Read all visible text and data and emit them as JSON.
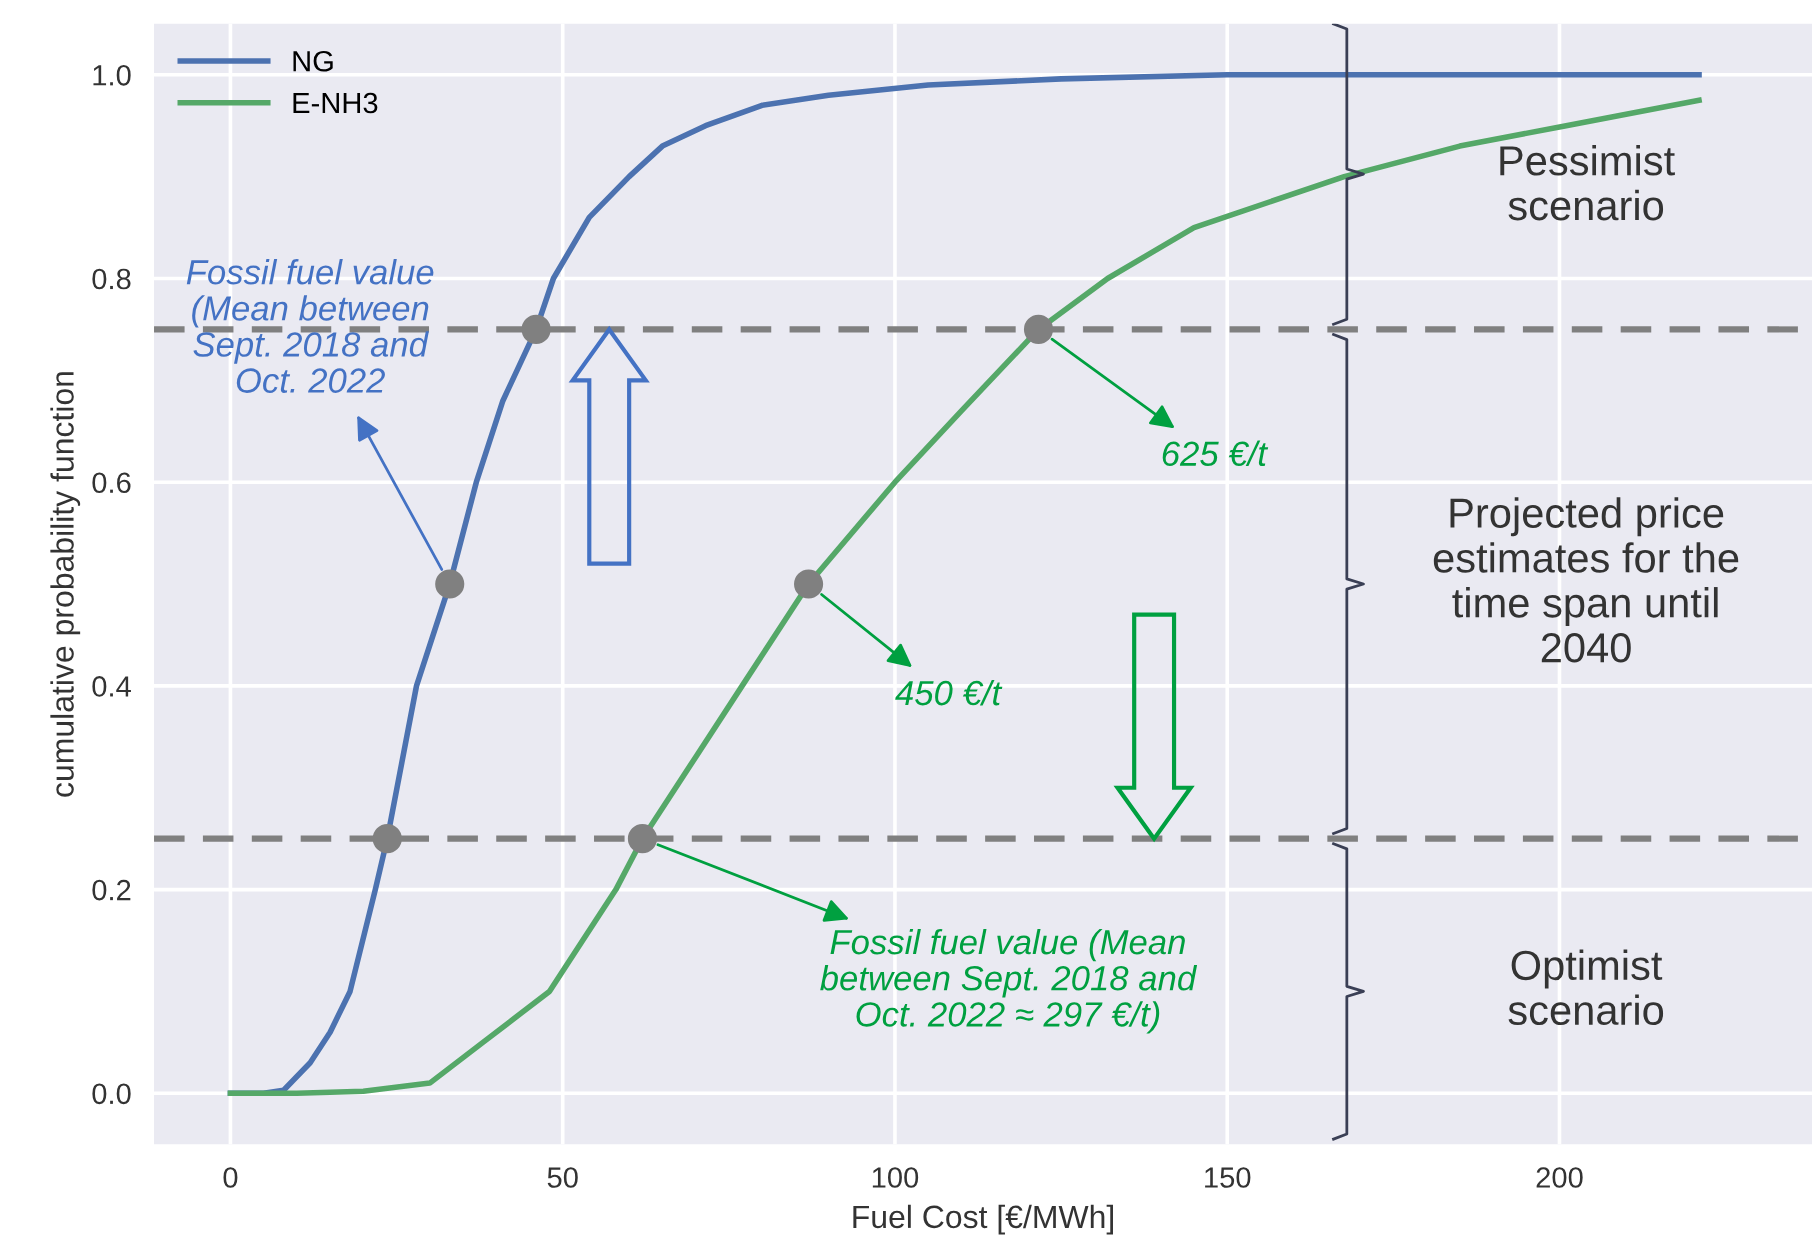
{
  "chart_data": {
    "type": "line",
    "xlabel": "Fuel Cost [€/MWh]",
    "ylabel": "cumulative probability function",
    "xlim": [
      -11.5,
      238
    ],
    "ylim": [
      -0.05,
      1.05
    ],
    "xticks": [
      0,
      50,
      100,
      150,
      200
    ],
    "yticks": [
      {
        "value": 0,
        "label": "0.0"
      },
      0.2,
      0.4,
      0.6,
      0.8,
      {
        "value": 1,
        "label": "1.0"
      }
    ],
    "grid": true,
    "legend": "top left",
    "line_style": "solid",
    "series": [
      {
        "name": "NG",
        "color": "#4c72b0",
        "x": [
          0,
          5,
          8,
          12,
          15,
          18,
          21.8,
          23.6,
          28,
          33,
          37,
          41,
          46,
          48.6,
          54,
          60,
          65,
          71.5,
          80,
          90,
          105,
          125,
          150,
          190,
          221
        ],
        "values": [
          0,
          0,
          0.003,
          0.03,
          0.06,
          0.1,
          0.2,
          0.25,
          0.4,
          0.5,
          0.6,
          0.68,
          0.75,
          0.8,
          0.86,
          0.9,
          0.93,
          0.95,
          0.97,
          0.98,
          0.99,
          0.996,
          1.0,
          1.0,
          1.0
        ]
      },
      {
        "name": "E-NH3",
        "color": "#55a868",
        "x": [
          0,
          10,
          20,
          30,
          38,
          48,
          58,
          62,
          70,
          77,
          87,
          100,
          110,
          121.6,
          132,
          145,
          167.6,
          185,
          201,
          221
        ],
        "values": [
          0,
          0,
          0.002,
          0.01,
          0.05,
          0.1,
          0.2,
          0.25,
          0.33,
          0.4,
          0.5,
          0.6,
          0.67,
          0.75,
          0.8,
          0.85,
          0.9,
          0.93,
          0.95,
          0.975
        ]
      },
      {
        "type": "scatter",
        "color": "#808080",
        "marker": "circle",
        "x": [
          23.6,
          33,
          46,
          62,
          87,
          121.6
        ],
        "values": [
          0.25,
          0.5,
          0.75,
          0.25,
          0.5,
          0.75
        ]
      }
    ],
    "ref_lines": [
      {
        "axis": "y",
        "value": 0.75,
        "color": "#808080",
        "line_style": "dashed"
      },
      {
        "axis": "y",
        "value": 0.25,
        "color": "#808080",
        "line_style": "dashed"
      }
    ],
    "annotations": [
      {
        "text": "Fossil fuel value\n(Mean between\nSept. 2018 and\nOct. 2022",
        "x": 33,
        "y": 0.5
      },
      {
        "text": "625 €/t",
        "x": 121.6,
        "y": 0.75
      },
      {
        "text": "450 €/t",
        "x": 87,
        "y": 0.5
      },
      {
        "text": "Fossil fuel value (Mean\nbetween Sept. 2018 and\nOct. 2022 ≈ 297 €/t)",
        "x": 62,
        "y": 0.25
      },
      "Pessimist\nscenario",
      "Projected price\nestimates for the\ntime span until\n2040",
      "Optimist\nscenario"
    ]
  }
}
